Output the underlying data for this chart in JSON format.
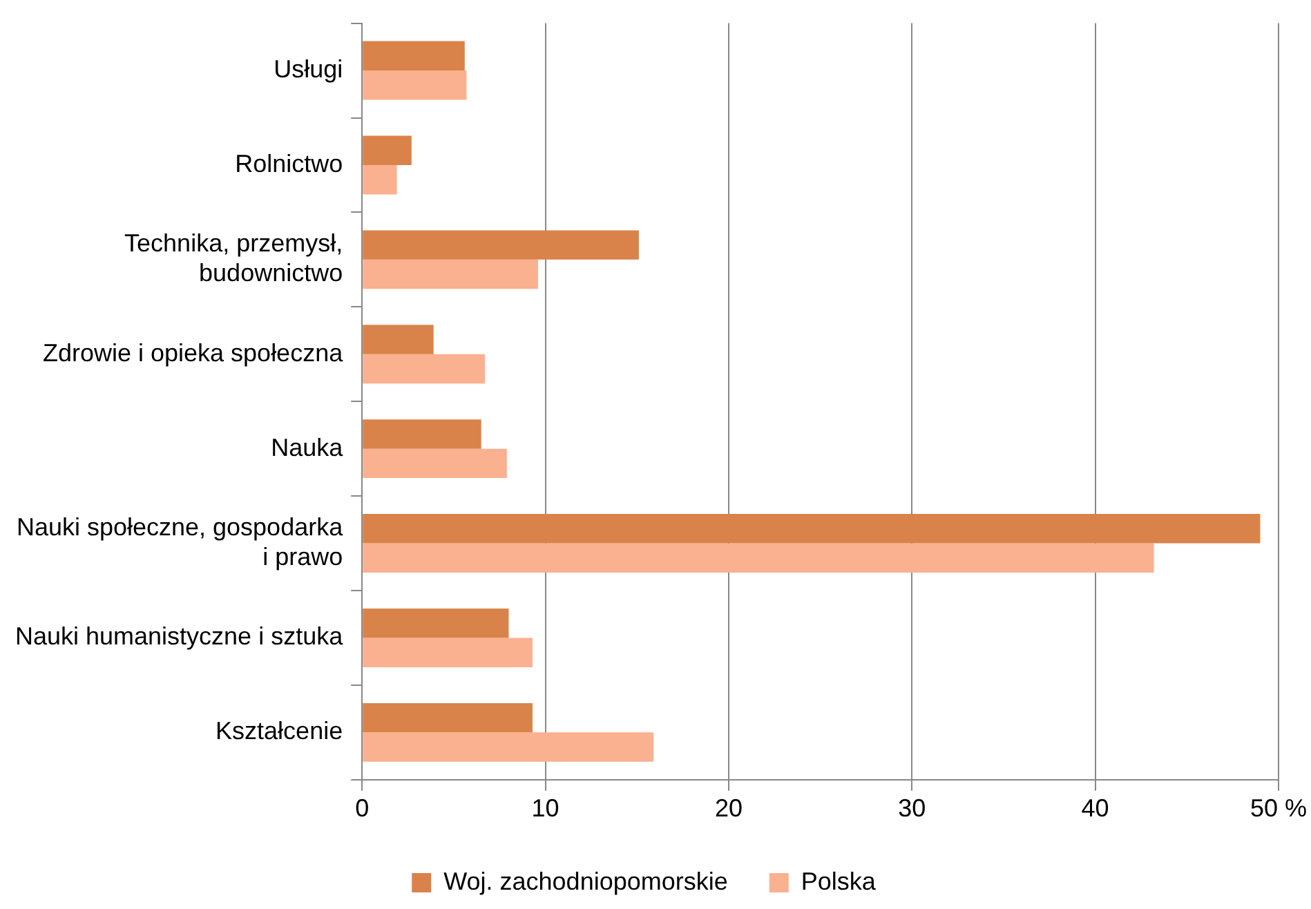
{
  "chart_data": {
    "type": "bar",
    "orientation": "horizontal",
    "categories": [
      "Usługi",
      "Rolnictwo",
      "Technika, przemysł,\nbudownictwo",
      "Zdrowie i opieka społeczna",
      "Nauka",
      "Nauki społeczne, gospodarka\ni prawo",
      "Nauki humanistyczne i sztuka",
      "Kształcenie"
    ],
    "series": [
      {
        "name": "Woj. zachodniopomorskie",
        "color": "#d9834a",
        "values": [
          5.6,
          2.7,
          15.1,
          3.9,
          6.5,
          49.0,
          8.0,
          9.3
        ]
      },
      {
        "name": "Polska",
        "color": "#f9b190",
        "values": [
          5.7,
          1.9,
          9.6,
          6.7,
          7.9,
          43.2,
          9.3,
          15.9
        ]
      }
    ],
    "xlim": [
      0,
      50
    ],
    "xticks": [
      0,
      10,
      20,
      30,
      40,
      {
        "value": 50,
        "label": "50 %"
      }
    ],
    "grid": "x",
    "legend": "bottom"
  }
}
